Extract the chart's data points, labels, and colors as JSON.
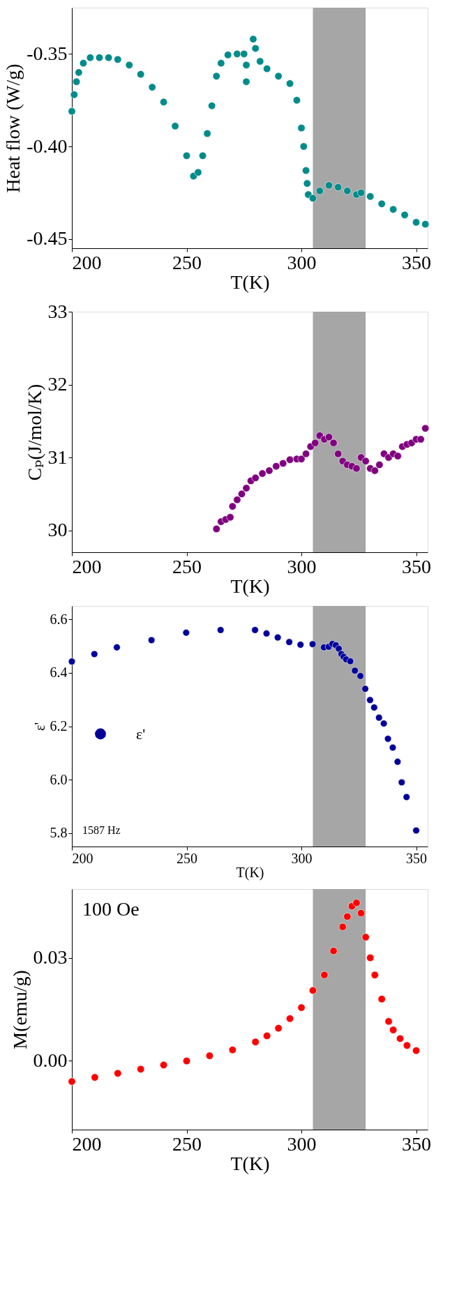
{
  "chart_data": [
    {
      "type": "scatter",
      "xlabel": "T(K)",
      "ylabel": "Heat flow (W/g)",
      "marker": "circle",
      "legend": false,
      "xlim": [
        200,
        355
      ],
      "ylim": [
        -0.455,
        -0.325
      ],
      "xticks": [
        200,
        250,
        300,
        350
      ],
      "yticks": [
        -0.35,
        {
          "value": -0.4,
          "label": "-0.40"
        },
        -0.45
      ],
      "bands": [
        {
          "axis": "x",
          "from": 305,
          "to": 328,
          "color": "#a6a6a6"
        }
      ],
      "series": [
        {
          "color": "#008b8b",
          "x": [
            200,
            201,
            202,
            203,
            205,
            208,
            212,
            216,
            220,
            225,
            230,
            235,
            240,
            245,
            250,
            253,
            255,
            257,
            259,
            261,
            263,
            265,
            268,
            272,
            275,
            276,
            276,
            279,
            280,
            282,
            285,
            290,
            295,
            298,
            300,
            301,
            302,
            302.5,
            303,
            305,
            308,
            312,
            316,
            320,
            324,
            326,
            330,
            335,
            340,
            345,
            350,
            354
          ],
          "values": [
            -0.381,
            -0.372,
            -0.365,
            -0.36,
            -0.355,
            -0.352,
            -0.352,
            -0.352,
            -0.353,
            -0.356,
            -0.361,
            -0.368,
            -0.376,
            -0.389,
            -0.405,
            -0.416,
            -0.414,
            -0.405,
            -0.393,
            -0.378,
            -0.362,
            -0.355,
            -0.3505,
            -0.35,
            -0.35,
            -0.356,
            -0.365,
            -0.342,
            -0.347,
            -0.354,
            -0.358,
            -0.362,
            -0.366,
            -0.375,
            -0.39,
            -0.4,
            -0.413,
            -0.42,
            -0.426,
            -0.428,
            -0.424,
            -0.421,
            -0.422,
            -0.424,
            -0.426,
            -0.425,
            -0.427,
            -0.431,
            -0.434,
            -0.437,
            -0.441,
            -0.442
          ]
        }
      ]
    },
    {
      "type": "scatter",
      "xlabel": "T(K)",
      "ylabel": "Cₚ(J/mol/K)",
      "marker": "circle",
      "legend": false,
      "xlim": [
        200,
        355
      ],
      "ylim": [
        29.7,
        33
      ],
      "xticks": [
        200,
        250,
        300,
        350
      ],
      "yticks": [
        30,
        31,
        32,
        33
      ],
      "bands": [
        {
          "axis": "x",
          "from": 305,
          "to": 328,
          "color": "#a6a6a6"
        }
      ],
      "series": [
        {
          "color": "#800080",
          "x": [
            263,
            265,
            267,
            269,
            270,
            272,
            274,
            276,
            278,
            280,
            283,
            286,
            289,
            292,
            295,
            298,
            300,
            302,
            304,
            306,
            308,
            310,
            312,
            314,
            316,
            318,
            320,
            322,
            324,
            326,
            328,
            330,
            332,
            334,
            336,
            338,
            340,
            342,
            344,
            346,
            348,
            350,
            352,
            354
          ],
          "values": [
            30.02,
            30.12,
            30.15,
            30.18,
            30.33,
            30.42,
            30.5,
            30.58,
            30.68,
            30.72,
            30.78,
            30.82,
            30.88,
            30.92,
            30.97,
            30.98,
            30.98,
            31.05,
            31.15,
            31.2,
            31.3,
            31.25,
            31.28,
            31.2,
            31.05,
            30.95,
            30.9,
            30.88,
            30.85,
            31.0,
            30.95,
            30.85,
            30.82,
            30.9,
            31.05,
            31.0,
            31.05,
            31.02,
            31.15,
            31.18,
            31.2,
            31.25,
            31.25,
            31.4
          ]
        }
      ]
    },
    {
      "type": "scatter",
      "xlabel": "T(K)",
      "ylabel": "ε'",
      "marker": "circle",
      "legend": "left",
      "xlim": [
        200,
        355
      ],
      "ylim": [
        5.75,
        6.65
      ],
      "xticks": [
        200,
        250,
        300,
        350
      ],
      "yticks": [
        5.8,
        {
          "value": 6.0,
          "label": "6.0"
        },
        6.2,
        6.4,
        6.6
      ],
      "bands": [
        {
          "axis": "x",
          "from": 305,
          "to": 328,
          "color": "#a6a6a6"
        }
      ],
      "annotations": [
        "1587 Hz"
      ],
      "series": [
        {
          "name": "ε'",
          "color": "#000099",
          "x": [
            200,
            209.8,
            219.6,
            234.7,
            249.8,
            264.8,
            279.8,
            284.8,
            289.7,
            294.7,
            299.6,
            304.9,
            309.8,
            311.9,
            313.5,
            315,
            316.3,
            317.4,
            318.4,
            319.5,
            321.3,
            323.3,
            325.7,
            327.8,
            329.9,
            331.7,
            333.8,
            335.9,
            337.7,
            339.8,
            341.9,
            343.7,
            345.8,
            350
          ],
          "values": [
            6.442,
            6.47,
            6.495,
            6.522,
            6.55,
            6.56,
            6.56,
            6.547,
            6.532,
            6.515,
            6.505,
            6.507,
            6.495,
            6.497,
            6.508,
            6.503,
            6.49,
            6.47,
            6.46,
            6.45,
            6.443,
            6.408,
            6.388,
            6.34,
            6.298,
            6.27,
            6.232,
            6.21,
            6.153,
            6.12,
            6.067,
            5.99,
            5.935,
            5.81
          ]
        }
      ]
    },
    {
      "type": "scatter",
      "xlabel": "T(K)",
      "ylabel": "M(emu/g)",
      "marker": "circle",
      "legend": false,
      "xlim": [
        200,
        355
      ],
      "ylim": [
        -0.02,
        0.05
      ],
      "xticks": [
        200,
        250,
        300,
        350
      ],
      "yticks": [
        {
          "value": 0.0,
          "label": "0.00"
        },
        0.03
      ],
      "bands": [
        {
          "axis": "x",
          "from": 305,
          "to": 328,
          "color": "#a6a6a6"
        }
      ],
      "annotations": [
        "100 Oe"
      ],
      "series": [
        {
          "color": "#ff0000",
          "x": [
            200,
            210,
            220,
            230,
            240,
            250,
            260,
            270,
            280,
            285,
            290,
            295,
            300,
            305,
            310,
            314,
            318,
            320,
            322,
            324,
            326,
            328,
            330,
            332,
            335,
            338,
            340,
            343,
            346,
            350
          ],
          "values": [
            -0.006,
            -0.0048,
            -0.0036,
            -0.0024,
            -0.0012,
            0.0,
            0.0015,
            0.0032,
            0.0055,
            0.0073,
            0.0095,
            0.0123,
            0.0155,
            0.0205,
            0.025,
            0.032,
            0.039,
            0.042,
            0.045,
            0.046,
            0.043,
            0.036,
            0.03,
            0.025,
            0.018,
            0.0115,
            0.009,
            0.0065,
            0.0045,
            0.003
          ]
        }
      ]
    }
  ]
}
